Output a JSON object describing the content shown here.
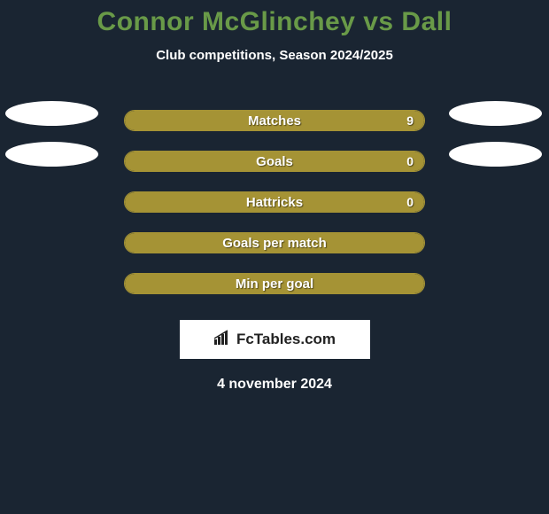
{
  "title": "Connor McGlinchey vs Dall",
  "subtitle": "Club competitions, Season 2024/2025",
  "date": "4 november 2024",
  "logo_text": "FcTables.com",
  "colors": {
    "background": "#1a2532",
    "title": "#699a48",
    "bar_border": "#a59335",
    "bar_fill": "#a59335",
    "text": "#ffffff",
    "oval": "#ffffff",
    "logo_bg": "#ffffff",
    "logo_text": "#222222"
  },
  "bars": [
    {
      "label": "Matches",
      "value": "9",
      "fill_pct": 100,
      "show_ovals": true
    },
    {
      "label": "Goals",
      "value": "0",
      "fill_pct": 100,
      "show_ovals": true
    },
    {
      "label": "Hattricks",
      "value": "0",
      "fill_pct": 100,
      "show_ovals": false
    },
    {
      "label": "Goals per match",
      "value": "",
      "fill_pct": 100,
      "show_ovals": false
    },
    {
      "label": "Min per goal",
      "value": "",
      "fill_pct": 100,
      "show_ovals": false
    }
  ]
}
